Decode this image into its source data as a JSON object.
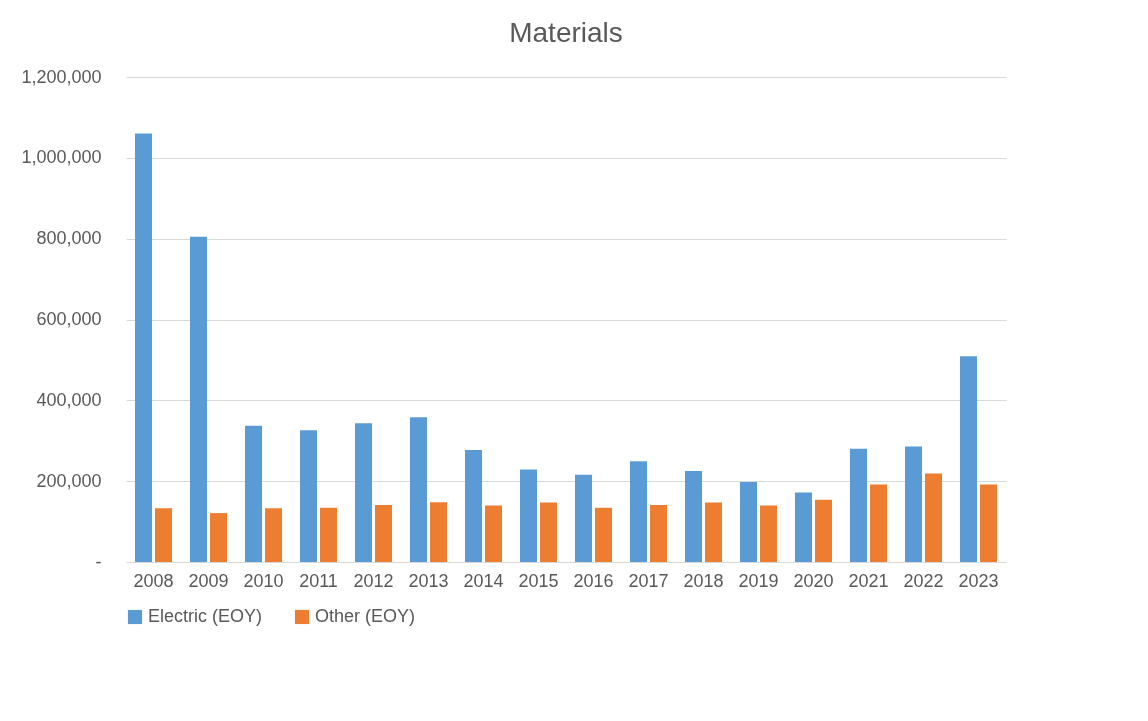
{
  "chart_data": {
    "type": "bar",
    "title": "Materials",
    "categories": [
      "2008",
      "2009",
      "2010",
      "2011",
      "2012",
      "2013",
      "2014",
      "2015",
      "2016",
      "2017",
      "2018",
      "2019",
      "2020",
      "2021",
      "2022",
      "2023"
    ],
    "series": [
      {
        "name": "Electric (EOY)",
        "color": "#5b9bd5",
        "values": [
          1060000,
          805000,
          337000,
          326000,
          343000,
          358000,
          277000,
          229000,
          216000,
          249000,
          225000,
          198000,
          172000,
          280000,
          286000,
          509000
        ]
      },
      {
        "name": "Other (EOY)",
        "color": "#ed7d31",
        "values": [
          133000,
          121000,
          133000,
          134000,
          141000,
          148000,
          140000,
          147000,
          134000,
          141000,
          147000,
          140000,
          154000,
          192000,
          219000,
          192000
        ]
      }
    ],
    "ylim": [
      0,
      1200000
    ],
    "yticks": [
      {
        "value": 0,
        "label": "-"
      },
      {
        "value": 200000,
        "label": "200,000"
      },
      {
        "value": 400000,
        "label": "400,000"
      },
      {
        "value": 600000,
        "label": "600,000"
      },
      {
        "value": 800000,
        "label": "800,000"
      },
      {
        "value": 1000000,
        "label": "1,000,000"
      },
      {
        "value": 1200000,
        "label": "1,200,000"
      }
    ],
    "grid": "y",
    "legend": "bottom"
  }
}
